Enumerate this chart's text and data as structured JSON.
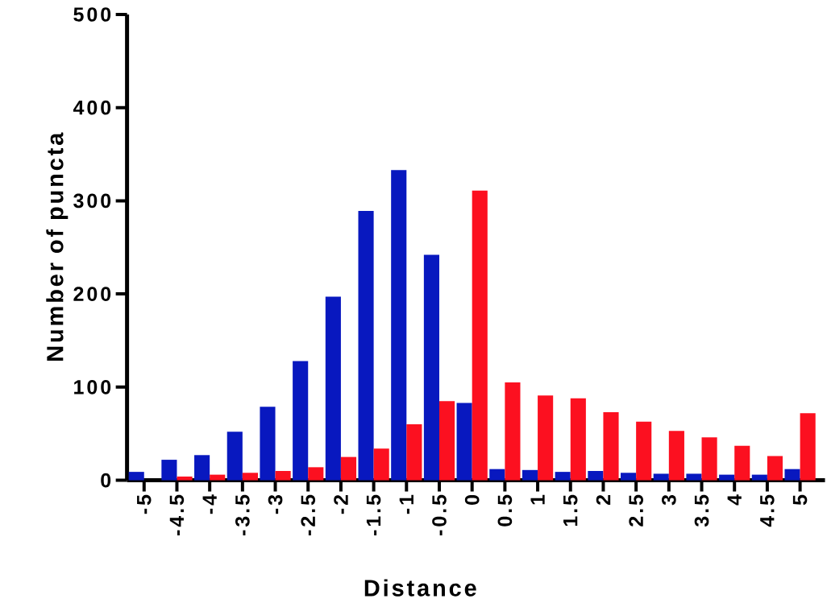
{
  "chart_data": {
    "type": "bar",
    "xlabel": "Distance",
    "ylabel": "Number of puncta",
    "categories": [
      "-5",
      "-4.5",
      "-4",
      "-3.5",
      "-3",
      "-2.5",
      "-2",
      "-1.5",
      "-1",
      "-0.5",
      "0",
      "0.5",
      "1",
      "1.5",
      "2",
      "2.5",
      "3",
      "3.5",
      "4",
      "4.5",
      "5"
    ],
    "series": [
      {
        "color": "#0818bf",
        "values": [
          9,
          22,
          27,
          52,
          79,
          128,
          197,
          289,
          333,
          242,
          83,
          12,
          11,
          9,
          10,
          8,
          7,
          7,
          6,
          6,
          12
        ]
      },
      {
        "color": "#fc1020",
        "values": [
          0,
          4,
          6,
          8,
          10,
          14,
          25,
          34,
          60,
          85,
          311,
          105,
          91,
          88,
          73,
          63,
          53,
          46,
          37,
          26,
          72
        ]
      }
    ],
    "ylim": [
      0,
      500
    ],
    "yticks": [
      0,
      100,
      200,
      300,
      400,
      500
    ],
    "grid": false
  }
}
